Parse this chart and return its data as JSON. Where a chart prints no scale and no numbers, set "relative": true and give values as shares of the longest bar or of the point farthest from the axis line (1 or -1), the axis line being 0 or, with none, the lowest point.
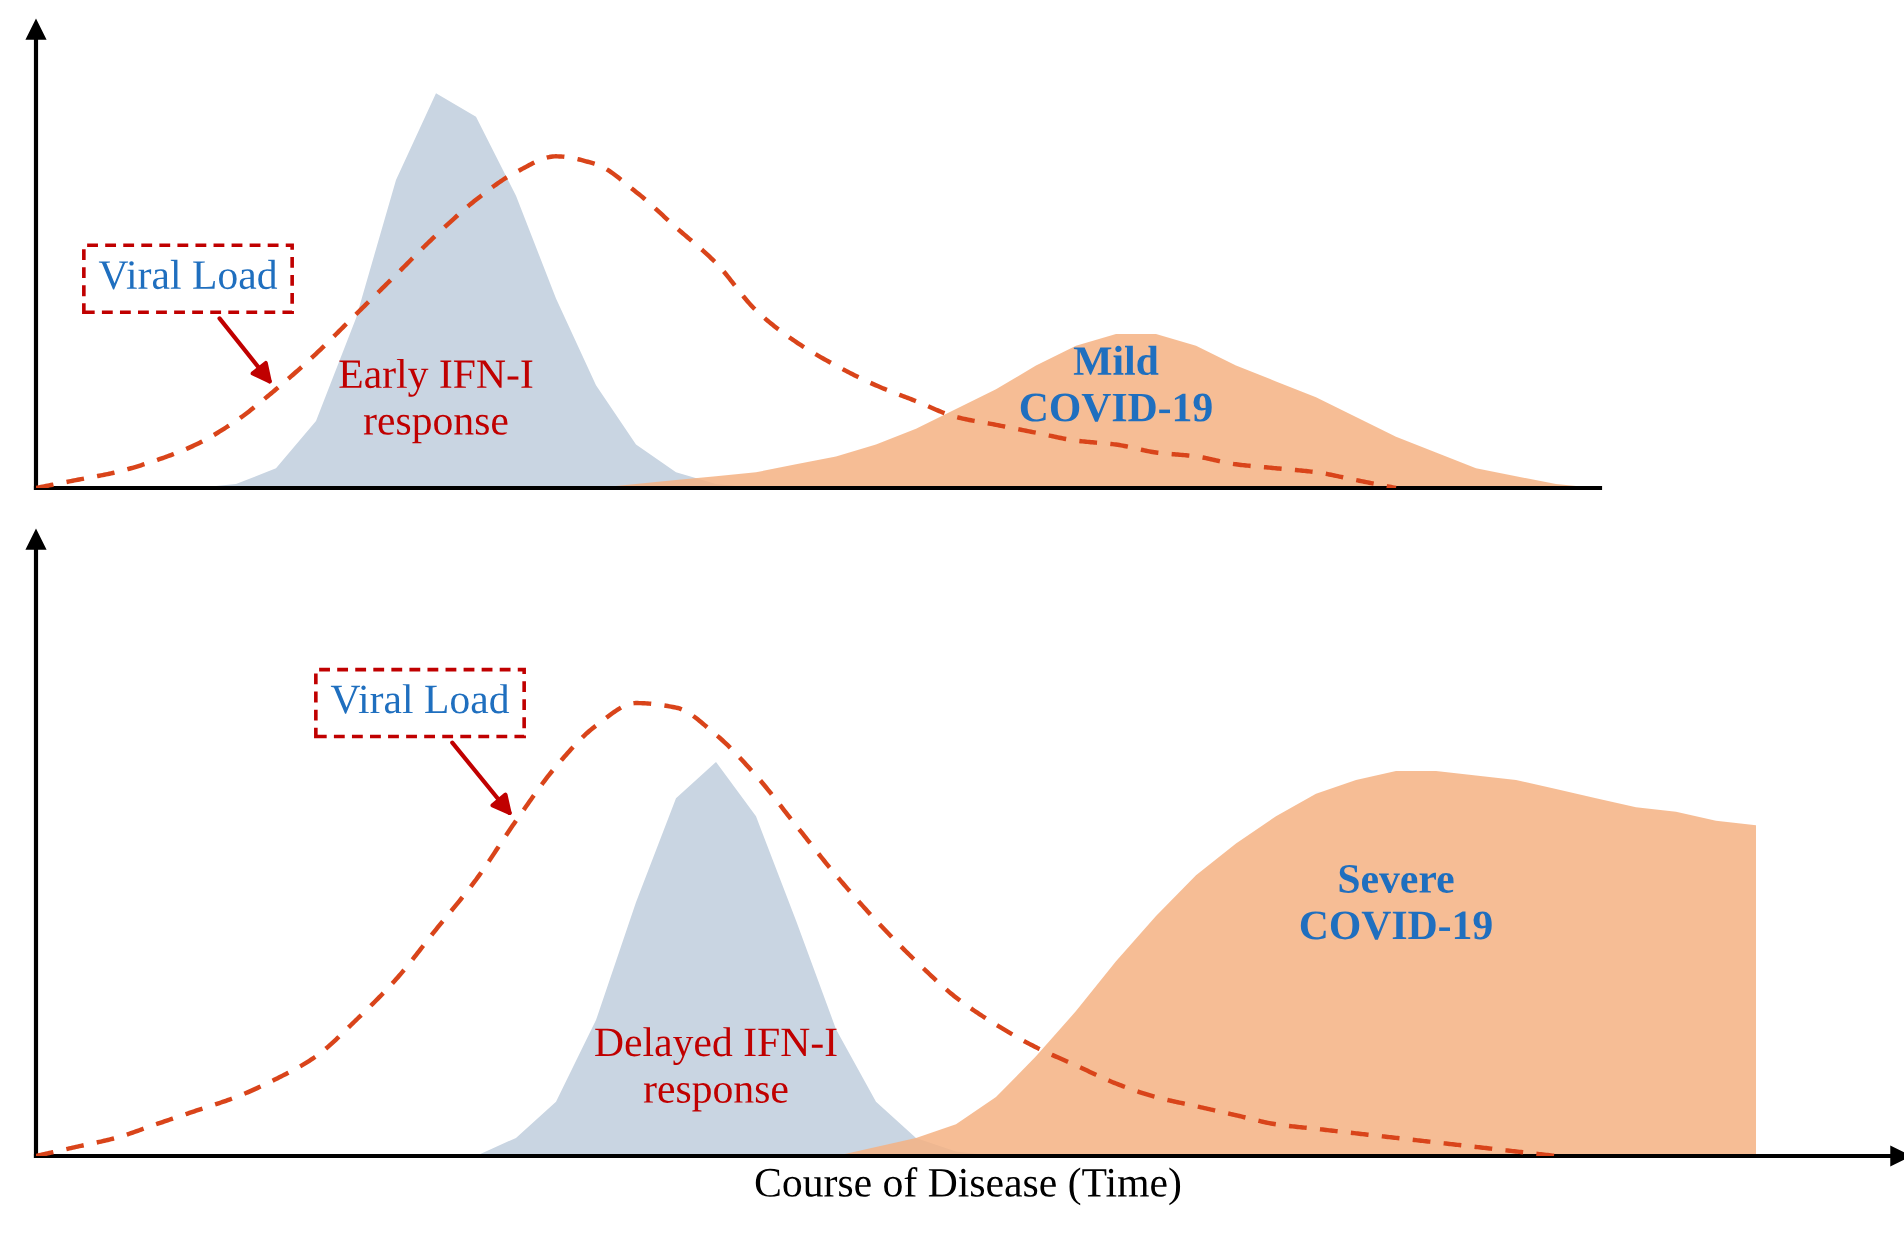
{
  "chart_data": [
    {
      "type": "area",
      "relative": true,
      "categories": [
        null,
        null,
        null,
        null,
        null,
        null,
        null,
        null,
        null,
        null,
        null,
        null,
        null,
        null,
        null,
        null,
        null,
        null,
        null,
        null,
        null,
        null,
        null,
        null,
        null,
        null,
        null,
        null,
        null,
        null,
        null,
        null,
        null,
        null,
        null,
        null,
        null,
        null,
        null,
        null
      ],
      "series": [
        {
          "name": "Early IFN-I response",
          "type": "area",
          "color": "#c9d5e2",
          "values": [
            null,
            null,
            null,
            null,
            0,
            0.01,
            0.05,
            0.17,
            0.43,
            0.78,
            1,
            0.94,
            0.74,
            0.48,
            0.26,
            0.11,
            0.04,
            0.01,
            0,
            null,
            null,
            null,
            null,
            null,
            null,
            null,
            null,
            null,
            null,
            null,
            null,
            null,
            null,
            null,
            null,
            null,
            null,
            null,
            null,
            null
          ]
        },
        {
          "name": "Mild COVID-19",
          "type": "area",
          "color": "#f4b183",
          "values": [
            null,
            null,
            null,
            null,
            null,
            null,
            null,
            null,
            null,
            null,
            null,
            null,
            null,
            null,
            0,
            0.01,
            0.02,
            0.03,
            0.04,
            0.06,
            0.08,
            0.11,
            0.15,
            0.2,
            0.25,
            0.31,
            0.36,
            0.39,
            0.39,
            0.36,
            0.31,
            0.27,
            0.23,
            0.18,
            0.13,
            0.09,
            0.05,
            0.03,
            0.01,
            0
          ]
        },
        {
          "name": "Viral Load",
          "type": "line",
          "color": "#d9441a",
          "line_style": "dashed",
          "marker": "none",
          "values": [
            0,
            0.02,
            0.04,
            0.07,
            0.11,
            0.17,
            0.25,
            0.34,
            0.44,
            0.54,
            0.64,
            0.73,
            0.8,
            0.84,
            0.82,
            0.75,
            0.66,
            0.57,
            0.45,
            0.37,
            0.31,
            0.26,
            0.22,
            0.18,
            0.16,
            0.14,
            0.12,
            0.11,
            0.09,
            0.08,
            0.06,
            0.05,
            0.04,
            0.02,
            0,
            null,
            null,
            null,
            null,
            null
          ]
        }
      ]
    },
    {
      "type": "area",
      "relative": true,
      "xlabel": "Course of Disease (Time)",
      "categories": [
        null,
        null,
        null,
        null,
        null,
        null,
        null,
        null,
        null,
        null,
        null,
        null,
        null,
        null,
        null,
        null,
        null,
        null,
        null,
        null,
        null,
        null,
        null,
        null,
        null,
        null,
        null,
        null,
        null,
        null,
        null,
        null,
        null,
        null,
        null,
        null,
        null,
        null,
        null,
        null,
        null,
        null,
        null,
        null,
        null,
        null,
        null
      ],
      "series": [
        {
          "name": "Delayed IFN-I response",
          "type": "area",
          "color": "#c9d5e2",
          "values": [
            null,
            null,
            null,
            null,
            null,
            null,
            null,
            null,
            null,
            null,
            null,
            0,
            0.04,
            0.12,
            0.3,
            0.56,
            0.79,
            0.87,
            0.75,
            0.52,
            0.28,
            0.12,
            0.04,
            0.01,
            0,
            null,
            null,
            null,
            null,
            null,
            null,
            null,
            null,
            null,
            null,
            null,
            null,
            null,
            null,
            null,
            null,
            null,
            null,
            null,
            null,
            null,
            null
          ]
        },
        {
          "name": "Severe COVID-19",
          "type": "area",
          "color": "#f4b183",
          "values": [
            null,
            null,
            null,
            null,
            null,
            null,
            null,
            null,
            null,
            null,
            null,
            null,
            null,
            null,
            null,
            null,
            null,
            null,
            null,
            null,
            0,
            0.02,
            0.04,
            0.07,
            0.13,
            0.22,
            0.32,
            0.43,
            0.53,
            0.62,
            0.69,
            0.75,
            0.8,
            0.83,
            0.85,
            0.85,
            0.84,
            0.83,
            0.81,
            0.79,
            0.77,
            0.76,
            0.74,
            0.73,
            null,
            null,
            null
          ]
        },
        {
          "name": "Viral Load",
          "type": "line",
          "color": "#d9441a",
          "line_style": "dashed",
          "marker": "none",
          "values": [
            0,
            0.02,
            0.04,
            0.07,
            0.1,
            0.13,
            0.17,
            0.22,
            0.3,
            0.39,
            0.5,
            0.61,
            0.74,
            0.86,
            0.95,
            1,
            0.99,
            0.93,
            0.84,
            0.73,
            0.62,
            0.52,
            0.43,
            0.35,
            0.29,
            0.24,
            0.2,
            0.16,
            0.13,
            0.11,
            0.09,
            0.07,
            0.06,
            0.05,
            0.04,
            0.03,
            0.02,
            0.01,
            0,
            null,
            null,
            null,
            null,
            null,
            null,
            null,
            null
          ]
        }
      ]
    }
  ]
}
